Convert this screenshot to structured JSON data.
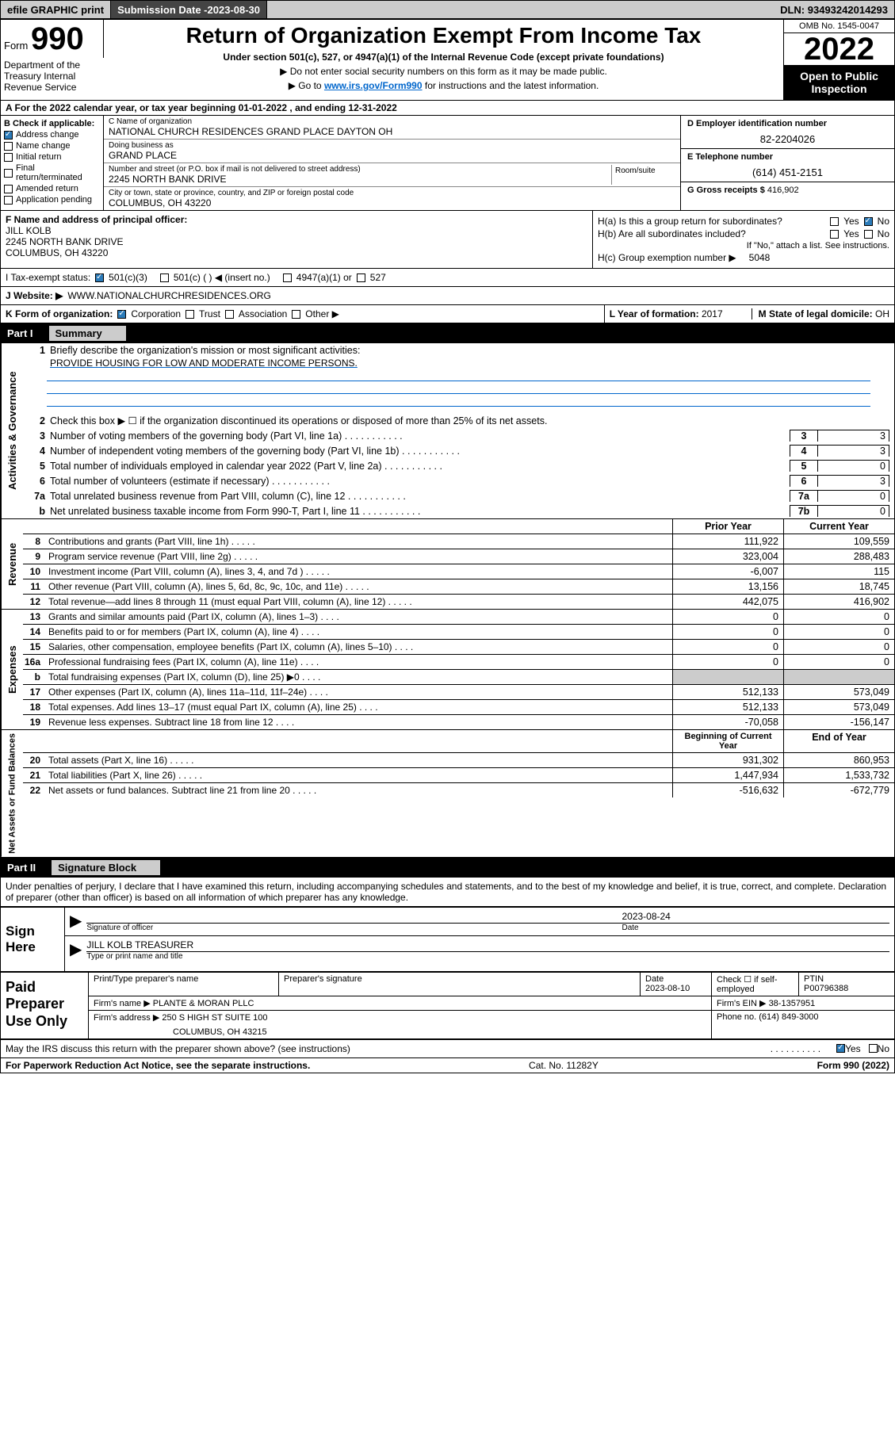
{
  "topbar": {
    "efile": "efile GRAPHIC print",
    "submission_label": "Submission Date - ",
    "submission_date": "2023-08-30",
    "dln_label": "DLN: ",
    "dln": "93493242014293"
  },
  "header": {
    "form_label": "Form",
    "form_number": "990",
    "title": "Return of Organization Exempt From Income Tax",
    "subtitle": "Under section 501(c), 527, or 4947(a)(1) of the Internal Revenue Code (except private foundations)",
    "note1": "▶ Do not enter social security numbers on this form as it may be made public.",
    "note2_pre": "▶ Go to ",
    "note2_link": "www.irs.gov/Form990",
    "note2_post": " for instructions and the latest information.",
    "omb": "OMB No. 1545-0047",
    "year": "2022",
    "open_public": "Open to Public Inspection",
    "dept": "Department of the Treasury Internal Revenue Service"
  },
  "row_a": {
    "label_pre": "A For the 2022 calendar year, or tax year beginning ",
    "begin": "01-01-2022",
    "mid": " , and ending ",
    "end": "12-31-2022"
  },
  "col_b": {
    "header": "B Check if applicable:",
    "items": [
      {
        "label": "Address change",
        "checked": true
      },
      {
        "label": "Name change",
        "checked": false
      },
      {
        "label": "Initial return",
        "checked": false
      },
      {
        "label": "Final return/terminated",
        "checked": false
      },
      {
        "label": "Amended return",
        "checked": false
      },
      {
        "label": "Application pending",
        "checked": false
      }
    ]
  },
  "col_c": {
    "name_label": "C Name of organization",
    "name": "NATIONAL CHURCH RESIDENCES GRAND PLACE DAYTON OH",
    "dba_label": "Doing business as",
    "dba": "GRAND PLACE",
    "addr_label": "Number and street (or P.O. box if mail is not delivered to street address)",
    "addr": "2245 NORTH BANK DRIVE",
    "room_label": "Room/suite",
    "city_label": "City or town, state or province, country, and ZIP or foreign postal code",
    "city": "COLUMBUS, OH  43220"
  },
  "col_de": {
    "d_label": "D Employer identification number",
    "d_val": "82-2204026",
    "e_label": "E Telephone number",
    "e_val": "(614) 451-2151",
    "g_label": "G Gross receipts $ ",
    "g_val": "416,902"
  },
  "col_f": {
    "label": "F Name and address of principal officer:",
    "name": "JILL KOLB",
    "addr1": "2245 NORTH BANK DRIVE",
    "addr2": "COLUMBUS, OH  43220"
  },
  "col_h": {
    "ha_label": "H(a)  Is this a group return for subordinates?",
    "ha_yes": "Yes",
    "ha_no": "No",
    "hb_label": "H(b)  Are all subordinates included?",
    "hb_yes": "Yes",
    "hb_no": "No",
    "hb_note": "If \"No,\" attach a list. See instructions.",
    "hc_label": "H(c)  Group exemption number ▶",
    "hc_val": "5048"
  },
  "row_i": {
    "label": "I   Tax-exempt status:",
    "opt1": "501(c)(3)",
    "opt2": "501(c) (  ) ◀ (insert no.)",
    "opt3": "4947(a)(1) or",
    "opt4": "527"
  },
  "row_j": {
    "label": "J   Website: ▶",
    "val": "WWW.NATIONALCHURCHRESIDENCES.ORG"
  },
  "row_k": {
    "label": "K Form of organization:",
    "opt1": "Corporation",
    "opt2": "Trust",
    "opt3": "Association",
    "opt4": "Other ▶"
  },
  "row_lm": {
    "l_label": "L Year of formation: ",
    "l_val": "2017",
    "m_label": "M State of legal domicile: ",
    "m_val": "OH"
  },
  "part1": {
    "pt": "Part I",
    "title": "Summary"
  },
  "summary": {
    "activities_label": "Activities & Governance",
    "line1_label": "Briefly describe the organization's mission or most significant activities:",
    "line1_val": "PROVIDE HOUSING FOR LOW AND MODERATE INCOME PERSONS.",
    "line2_label": "Check this box ▶ ☐  if the organization discontinued its operations or disposed of more than 25% of its net assets.",
    "lines_ag": [
      {
        "n": "3",
        "d": "Number of voting members of the governing body (Part VI, line 1a)",
        "box": "3",
        "val": "3"
      },
      {
        "n": "4",
        "d": "Number of independent voting members of the governing body (Part VI, line 1b)",
        "box": "4",
        "val": "3"
      },
      {
        "n": "5",
        "d": "Total number of individuals employed in calendar year 2022 (Part V, line 2a)",
        "box": "5",
        "val": "0"
      },
      {
        "n": "6",
        "d": "Total number of volunteers (estimate if necessary)",
        "box": "6",
        "val": "3"
      },
      {
        "n": "7a",
        "d": "Total unrelated business revenue from Part VIII, column (C), line 12",
        "box": "7a",
        "val": "0"
      },
      {
        "n": "b",
        "d": "Net unrelated business taxable income from Form 990-T, Part I, line 11",
        "box": "7b",
        "val": "0"
      }
    ],
    "revenue_label": "Revenue",
    "expenses_label": "Expenses",
    "netassets_label": "Net Assets or Fund Balances",
    "prior_year": "Prior Year",
    "current_year": "Current Year",
    "beginning": "Beginning of Current Year",
    "endofyear": "End of Year",
    "rev_lines": [
      {
        "n": "8",
        "d": "Contributions and grants (Part VIII, line 1h)",
        "v1": "111,922",
        "v2": "109,559"
      },
      {
        "n": "9",
        "d": "Program service revenue (Part VIII, line 2g)",
        "v1": "323,004",
        "v2": "288,483"
      },
      {
        "n": "10",
        "d": "Investment income (Part VIII, column (A), lines 3, 4, and 7d )",
        "v1": "-6,007",
        "v2": "115"
      },
      {
        "n": "11",
        "d": "Other revenue (Part VIII, column (A), lines 5, 6d, 8c, 9c, 10c, and 11e)",
        "v1": "13,156",
        "v2": "18,745"
      },
      {
        "n": "12",
        "d": "Total revenue—add lines 8 through 11 (must equal Part VIII, column (A), line 12)",
        "v1": "442,075",
        "v2": "416,902"
      }
    ],
    "exp_lines": [
      {
        "n": "13",
        "d": "Grants and similar amounts paid (Part IX, column (A), lines 1–3)",
        "v1": "0",
        "v2": "0"
      },
      {
        "n": "14",
        "d": "Benefits paid to or for members (Part IX, column (A), line 4)",
        "v1": "0",
        "v2": "0"
      },
      {
        "n": "15",
        "d": "Salaries, other compensation, employee benefits (Part IX, column (A), lines 5–10)",
        "v1": "0",
        "v2": "0"
      },
      {
        "n": "16a",
        "d": "Professional fundraising fees (Part IX, column (A), line 11e)",
        "v1": "0",
        "v2": "0"
      },
      {
        "n": "b",
        "d": "Total fundraising expenses (Part IX, column (D), line 25) ▶0",
        "v1": "",
        "v2": "",
        "grey": true
      },
      {
        "n": "17",
        "d": "Other expenses (Part IX, column (A), lines 11a–11d, 11f–24e)",
        "v1": "512,133",
        "v2": "573,049"
      },
      {
        "n": "18",
        "d": "Total expenses. Add lines 13–17 (must equal Part IX, column (A), line 25)",
        "v1": "512,133",
        "v2": "573,049"
      },
      {
        "n": "19",
        "d": "Revenue less expenses. Subtract line 18 from line 12",
        "v1": "-70,058",
        "v2": "-156,147"
      }
    ],
    "na_lines": [
      {
        "n": "20",
        "d": "Total assets (Part X, line 16)",
        "v1": "931,302",
        "v2": "860,953"
      },
      {
        "n": "21",
        "d": "Total liabilities (Part X, line 26)",
        "v1": "1,447,934",
        "v2": "1,533,732"
      },
      {
        "n": "22",
        "d": "Net assets or fund balances. Subtract line 21 from line 20",
        "v1": "-516,632",
        "v2": "-672,779"
      }
    ]
  },
  "part2": {
    "pt": "Part II",
    "title": "Signature Block"
  },
  "sig_disclaimer": "Under penalties of perjury, I declare that I have examined this return, including accompanying schedules and statements, and to the best of my knowledge and belief, it is true, correct, and complete. Declaration of preparer (other than officer) is based on all information of which preparer has any knowledge.",
  "sign": {
    "label": "Sign Here",
    "sig_date": "2023-08-24",
    "sig_label": "Signature of officer",
    "date_label": "Date",
    "name": "JILL KOLB  TREASURER",
    "name_label": "Type or print name and title"
  },
  "paid": {
    "label": "Paid Preparer Use Only",
    "h_name": "Print/Type preparer's name",
    "h_sig": "Preparer's signature",
    "h_date": "Date",
    "date": "2023-08-10",
    "h_check": "Check ☐  if self-employed",
    "h_ptin": "PTIN",
    "ptin": "P00796388",
    "firm_name_label": "Firm's name     ▶ ",
    "firm_name": "PLANTE & MORAN PLLC",
    "firm_ein_label": "Firm's EIN ▶ ",
    "firm_ein": "38-1357951",
    "firm_addr_label": "Firm's address ▶ ",
    "firm_addr1": "250 S HIGH ST SUITE 100",
    "firm_addr2": "COLUMBUS, OH  43215",
    "phone_label": "Phone no. ",
    "phone": "(614) 849-3000"
  },
  "discuss": {
    "text": "May the IRS discuss this return with the preparer shown above? (see instructions)",
    "yes": "Yes",
    "no": "No"
  },
  "footer": {
    "left": "For Paperwork Reduction Act Notice, see the separate instructions.",
    "mid": "Cat. No. 11282Y",
    "right": "Form 990 (2022)"
  },
  "colors": {
    "grey": "#cccccc",
    "dark": "#444444",
    "link": "#0066cc",
    "check_blue": "#2b7bb9"
  }
}
